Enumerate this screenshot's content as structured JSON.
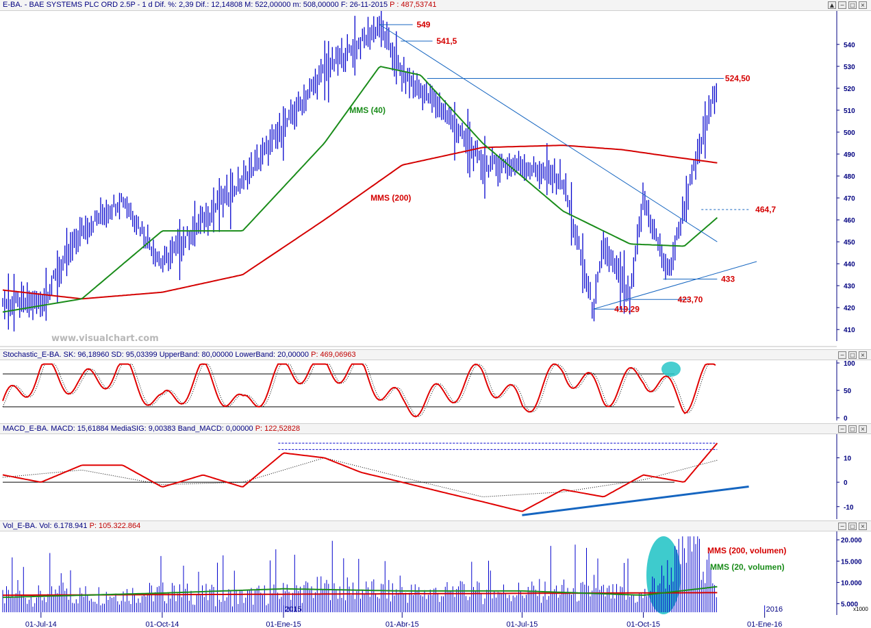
{
  "headers": {
    "price": {
      "text": "E-BA. - BAE SYSTEMS PLC ORD 2.5P - 1 d Dif. %: 2,39 Dif.: 12,14808 M: 522,00000 m: 508,00000 F: 26-11-2015",
      "p": "P : 487,53741"
    },
    "stoch": {
      "text": "Stochastic_E-BA. SK: 96,18960 SD: 95,03399 UpperBand: 80,00000 LowerBand: 20,00000",
      "p": "P: 469,06963"
    },
    "macd": {
      "text": "MACD_E-BA. MACD: 15,61884 MediaSIG: 9,00383 Band_MACD: 0,00000",
      "p": "P: 122,52828"
    },
    "vol": {
      "text": "Vol_E-BA. Vol: 6.178.941",
      "p": "P: 105.322.864"
    }
  },
  "watermark": "www.visualchart.com",
  "colors": {
    "price_bars": "#0000cc",
    "mms40": "#1a8c1a",
    "mms200": "#d40000",
    "trend": "#1565c0",
    "stoch_k": "#e00000",
    "highlight": "#29c5c8",
    "axis_text": "#000080"
  },
  "x_axis": {
    "labels": [
      "01-Jul-14",
      "01-Oct-14",
      "01-Ene-15",
      "01-Abr-15",
      "01-Jul-15",
      "01-Oct-15",
      "01-Ene-16"
    ],
    "year_markers": [
      "2015",
      "2016"
    ]
  },
  "chart_data": [
    {
      "type": "line",
      "title": "E-BA. - BAE SYSTEMS PLC ORD 2.5P - 1 d",
      "ylim": [
        406,
        549
      ],
      "yticks": [
        410,
        420,
        430,
        440,
        450,
        460,
        470,
        480,
        490,
        500,
        510,
        520,
        530,
        540
      ],
      "series": [
        {
          "name": "E-BA.",
          "x": [
            "2014-06-02",
            "2014-07-01",
            "2014-08-01",
            "2014-09-01",
            "2014-10-01",
            "2014-11-01",
            "2014-12-01",
            "2015-01-01",
            "2015-02-01",
            "2015-03-01",
            "2015-03-15",
            "2015-04-01",
            "2015-05-01",
            "2015-06-01",
            "2015-07-01",
            "2015-08-01",
            "2015-08-24",
            "2015-09-01",
            "2015-09-21",
            "2015-10-01",
            "2015-10-20",
            "2015-11-01",
            "2015-11-26"
          ],
          "y": [
            422,
            422,
            455,
            470,
            440,
            460,
            478,
            502,
            528,
            541,
            549,
            526,
            511,
            485,
            485,
            478,
            419,
            448,
            424,
            470,
            435,
            466,
            522
          ]
        },
        {
          "name": "MMS (40)",
          "x": [
            "2014-06-02",
            "2014-08-01",
            "2014-10-01",
            "2014-12-01",
            "2015-02-01",
            "2015-03-15",
            "2015-04-15",
            "2015-06-01",
            "2015-08-01",
            "2015-09-21",
            "2015-11-01",
            "2015-11-26"
          ],
          "y": [
            418,
            424,
            455,
            455,
            495,
            530,
            526,
            495,
            464,
            449,
            448,
            461
          ]
        },
        {
          "name": "MMS (200)",
          "x": [
            "2014-06-02",
            "2014-08-01",
            "2014-10-01",
            "2014-12-01",
            "2015-02-01",
            "2015-04-01",
            "2015-06-01",
            "2015-08-01",
            "2015-09-15",
            "2015-10-20",
            "2015-11-26"
          ],
          "y": [
            428,
            424,
            427,
            435,
            460,
            485,
            493,
            494,
            492,
            489,
            486
          ]
        }
      ],
      "annotations": [
        "549",
        "541,5",
        "524,50",
        "464,7",
        "433",
        "423,70",
        "419,29",
        "MMS (40)",
        "MMS (200)"
      ]
    },
    {
      "type": "line",
      "title": "Stochastic_E-BA.",
      "ylim": [
        0,
        100
      ],
      "yticks": [
        0,
        50,
        100
      ],
      "bands": [
        20,
        80
      ],
      "series": [
        {
          "name": "SK",
          "x": [
            "2014-06-02",
            "2014-07-01",
            "2014-08-01",
            "2014-09-01",
            "2014-10-01",
            "2014-11-01",
            "2014-12-01",
            "2015-01-01",
            "2015-02-01",
            "2015-03-01",
            "2015-04-01",
            "2015-05-01",
            "2015-06-01",
            "2015-07-01",
            "2015-08-01",
            "2015-09-01",
            "2015-10-01",
            "2015-11-01",
            "2015-11-26"
          ],
          "y": [
            20,
            85,
            60,
            90,
            20,
            80,
            15,
            85,
            90,
            85,
            20,
            40,
            80,
            20,
            90,
            40,
            80,
            30,
            96
          ]
        }
      ]
    },
    {
      "type": "line",
      "title": "MACD_E-BA.",
      "ylim": [
        -14,
        18
      ],
      "yticks": [
        -10,
        0,
        10
      ],
      "series": [
        {
          "name": "MACD",
          "x": [
            "2014-06-02",
            "2014-07-01",
            "2014-08-01",
            "2014-09-01",
            "2014-10-01",
            "2014-11-01",
            "2014-12-01",
            "2015-01-01",
            "2015-02-01",
            "2015-03-01",
            "2015-04-01",
            "2015-05-01",
            "2015-06-01",
            "2015-07-01",
            "2015-08-01",
            "2015-09-01",
            "2015-10-01",
            "2015-11-01",
            "2015-11-26"
          ],
          "y": [
            3,
            0,
            7,
            7,
            -2,
            3,
            -2,
            12,
            10,
            4,
            0,
            -4,
            -8,
            -12,
            -3,
            -6,
            3,
            0,
            16
          ]
        },
        {
          "name": "MediaSIG",
          "x": [
            "2014-06-02",
            "2014-08-01",
            "2014-10-01",
            "2014-12-01",
            "2015-02-01",
            "2015-04-01",
            "2015-06-01",
            "2015-08-01",
            "2015-10-01",
            "2015-11-26"
          ],
          "y": [
            2,
            5,
            -1,
            0,
            10,
            2,
            -6,
            -4,
            1,
            9
          ]
        }
      ]
    },
    {
      "type": "bar",
      "title": "Vol_E-BA.",
      "ylabel": "x1000",
      "ylim": [
        3000,
        21000
      ],
      "yticks": [
        5000,
        10000,
        15000,
        20000
      ],
      "ytick_labels": [
        "5.000",
        "10.000",
        "15.000",
        "20.000"
      ],
      "series": [
        {
          "name": "Vol",
          "x": [
            "2014-06-02",
            "2014-08-01",
            "2014-10-01",
            "2014-12-01",
            "2015-02-01",
            "2015-04-01",
            "2015-06-01",
            "2015-08-01",
            "2015-10-01",
            "2015-11-10",
            "2015-11-26"
          ],
          "y": [
            7000,
            7500,
            8000,
            7000,
            9000,
            8000,
            8000,
            8500,
            7000,
            20500,
            6179
          ]
        },
        {
          "name": "MMS (200, volumen)",
          "x": [
            "2014-06-02",
            "2015-11-26"
          ],
          "y": [
            7000,
            7600
          ]
        },
        {
          "name": "MMS (20, volumen)",
          "x": [
            "2014-06-02",
            "2014-10-01",
            "2015-01-01",
            "2015-04-01",
            "2015-07-01",
            "2015-10-01",
            "2015-11-26"
          ],
          "y": [
            6500,
            7500,
            8500,
            8000,
            8000,
            7000,
            9000
          ]
        }
      ],
      "annotations": [
        "MMS (200, volumen)",
        "MMS (20, volumen)"
      ]
    }
  ]
}
